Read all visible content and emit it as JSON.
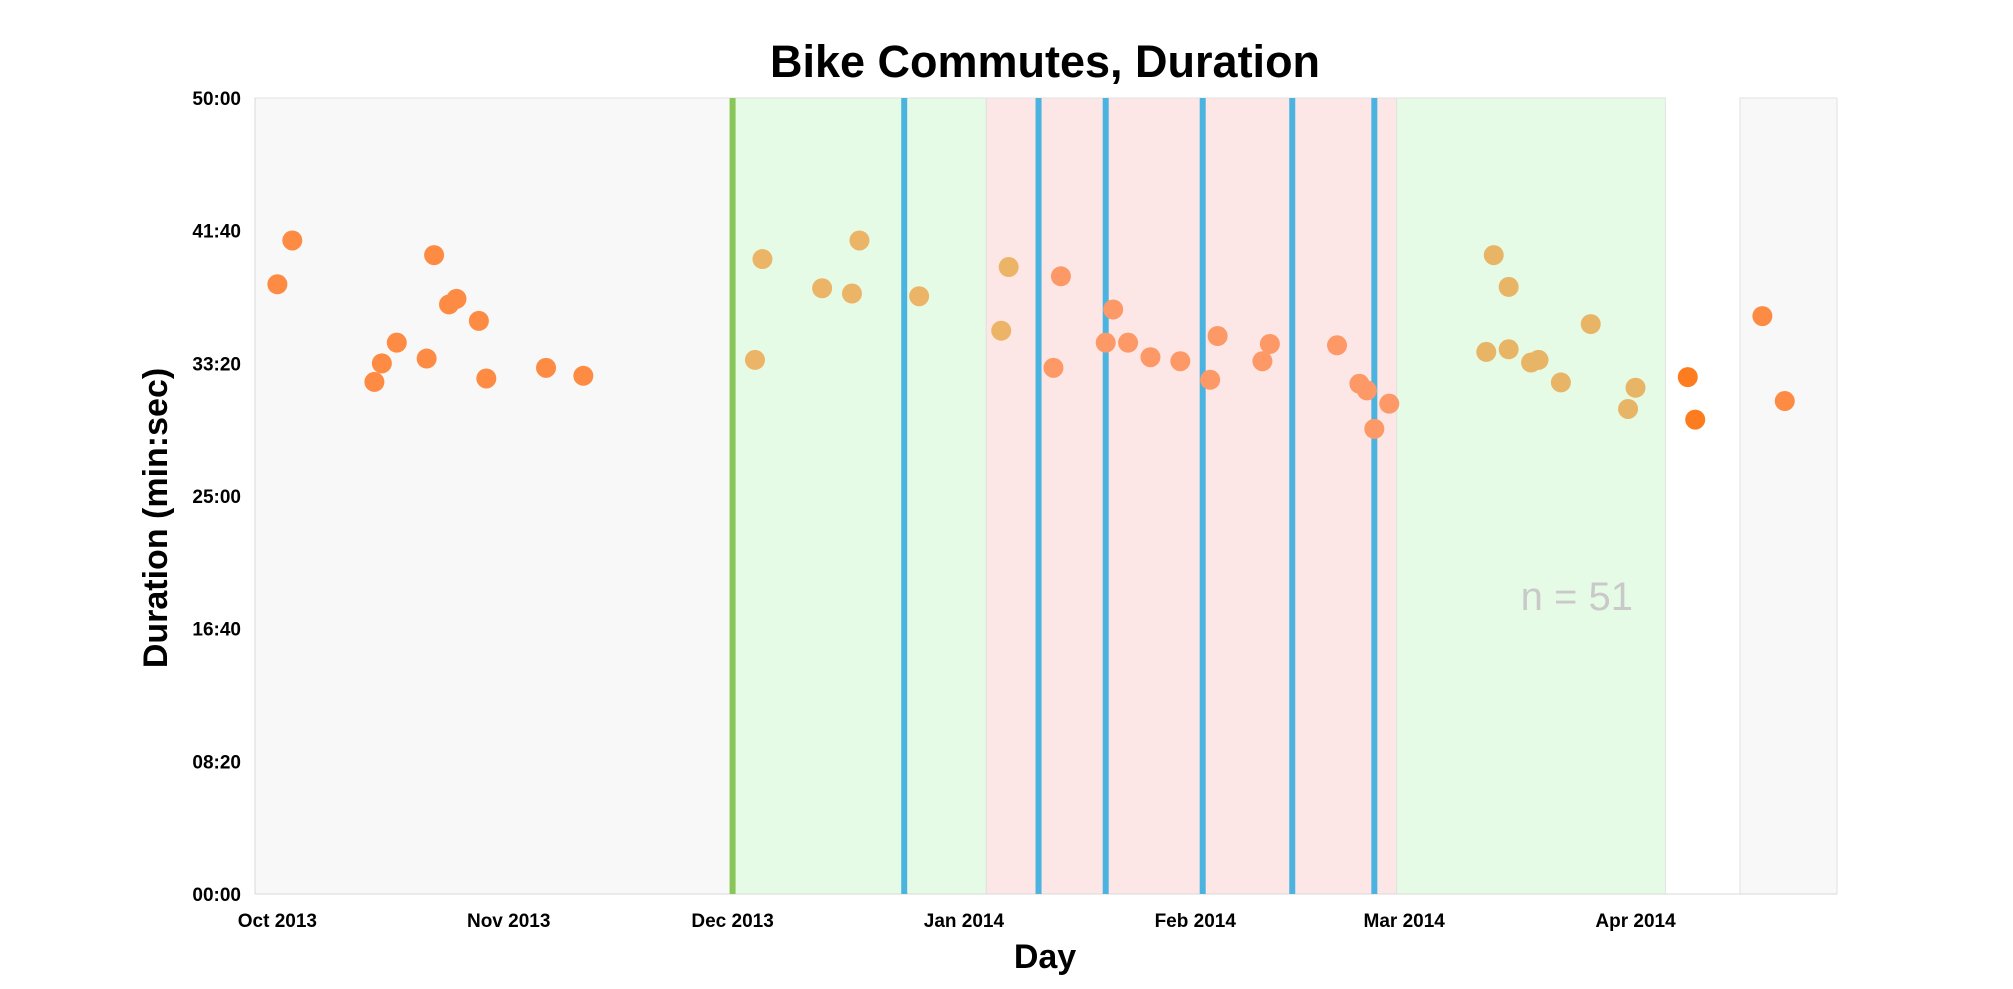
{
  "chart_data": {
    "type": "scatter",
    "title": "Bike Commutes, Duration",
    "xlabel": "Day",
    "ylabel": "Duration (min:sec)",
    "x_axis": {
      "type": "date",
      "range": [
        "2013-09-28",
        "2014-04-28"
      ],
      "ticks": [
        {
          "value": "2013-10-01",
          "label": "Oct 2013"
        },
        {
          "value": "2013-11-01",
          "label": "Nov 2013"
        },
        {
          "value": "2013-12-01",
          "label": "Dec 2013"
        },
        {
          "value": "2014-01-01",
          "label": "Jan 2014"
        },
        {
          "value": "2014-02-01",
          "label": "Feb 2014"
        },
        {
          "value": "2014-03-01",
          "label": "Mar 2014"
        },
        {
          "value": "2014-04-01",
          "label": "Apr 2014"
        }
      ]
    },
    "y_axis": {
      "unit": "seconds",
      "range": [
        0,
        3000
      ],
      "ticks": [
        {
          "value": 0,
          "label": "00:00"
        },
        {
          "value": 500,
          "label": "08:20"
        },
        {
          "value": 1000,
          "label": "16:40"
        },
        {
          "value": 1500,
          "label": "25:00"
        },
        {
          "value": 2000,
          "label": "33:20"
        },
        {
          "value": 2500,
          "label": "41:40"
        },
        {
          "value": 3000,
          "label": "50:00"
        }
      ]
    },
    "grid": false,
    "legend": "none",
    "annotation": "n = 51",
    "background_regions": [
      {
        "start": "2013-09-28",
        "end": "2013-12-01",
        "color": "#f8f8f8"
      },
      {
        "start": "2013-12-01",
        "end": "2014-01-04",
        "color": "#e6fbe6"
      },
      {
        "start": "2014-01-04",
        "end": "2014-02-28",
        "color": "#fde6e6"
      },
      {
        "start": "2014-02-28",
        "end": "2014-04-05",
        "color": "#e6fbe6"
      },
      {
        "start": "2014-04-15",
        "end": "2014-04-30",
        "color": "#f8f8f8"
      }
    ],
    "vertical_lines": [
      {
        "date": "2013-12-01",
        "color": "#88c657"
      },
      {
        "date": "2013-12-24",
        "color": "#4bb3e0"
      },
      {
        "date": "2014-01-11",
        "color": "#4bb3e0"
      },
      {
        "date": "2014-01-20",
        "color": "#4bb3e0"
      },
      {
        "date": "2014-02-02",
        "color": "#4bb3e0"
      },
      {
        "date": "2014-02-14",
        "color": "#4bb3e0"
      },
      {
        "date": "2014-02-25",
        "color": "#4bb3e0"
      }
    ],
    "series": [
      {
        "color": "#fd8b43",
        "points": [
          [
            "2013-10-01",
            2298
          ],
          [
            "2013-10-03",
            2463
          ],
          [
            "2013-10-14",
            1930
          ],
          [
            "2013-10-15",
            2000
          ],
          [
            "2013-10-17",
            2078
          ],
          [
            "2013-10-21",
            2018
          ],
          [
            "2013-10-22",
            2408
          ],
          [
            "2013-10-24",
            2222
          ],
          [
            "2013-10-25",
            2243
          ],
          [
            "2013-10-28",
            2160
          ],
          [
            "2013-10-29",
            1943
          ],
          [
            "2013-11-06",
            1983
          ],
          [
            "2013-11-11",
            1953
          ]
        ]
      },
      {
        "color": "#ecb466",
        "points": [
          [
            "2013-12-04",
            2013
          ],
          [
            "2013-12-05",
            2393
          ],
          [
            "2013-12-13",
            2283
          ],
          [
            "2013-12-17",
            2263
          ],
          [
            "2013-12-18",
            2463
          ],
          [
            "2013-12-26",
            2253
          ],
          [
            "2014-01-06",
            2123
          ],
          [
            "2014-01-07",
            2363
          ]
        ]
      },
      {
        "color": "#fd9966",
        "points": [
          [
            "2014-01-13",
            1983
          ],
          [
            "2014-01-14",
            2328
          ],
          [
            "2014-01-20",
            2078
          ],
          [
            "2014-01-21",
            2203
          ],
          [
            "2014-01-23",
            2078
          ],
          [
            "2014-01-26",
            2023
          ],
          [
            "2014-01-30",
            2008
          ],
          [
            "2014-02-03",
            1938
          ],
          [
            "2014-02-04",
            2103
          ],
          [
            "2014-02-10",
            2008
          ],
          [
            "2014-02-11",
            2073
          ],
          [
            "2014-02-20",
            2068
          ],
          [
            "2014-02-23",
            1923
          ],
          [
            "2014-02-24",
            1898
          ],
          [
            "2014-02-25",
            1753
          ],
          [
            "2014-02-27",
            1848
          ]
        ]
      },
      {
        "color": "#e8b567",
        "points": [
          [
            "2014-03-12",
            2043
          ],
          [
            "2014-03-13",
            2408
          ],
          [
            "2014-03-15",
            2053
          ],
          [
            "2014-03-15",
            2288
          ],
          [
            "2014-03-18",
            2003
          ],
          [
            "2014-03-19",
            2013
          ],
          [
            "2014-03-22",
            1928
          ],
          [
            "2014-03-26",
            2148
          ],
          [
            "2014-03-31",
            1828
          ],
          [
            "2014-04-01",
            1908
          ]
        ]
      },
      {
        "color": "#fd7c1f",
        "points": [
          [
            "2014-04-08",
            1948
          ],
          [
            "2014-04-09",
            1788
          ]
        ]
      },
      {
        "color": "#fd8b43",
        "points": [
          [
            "2014-04-18",
            2178
          ],
          [
            "2014-04-21",
            1858
          ]
        ]
      }
    ]
  }
}
